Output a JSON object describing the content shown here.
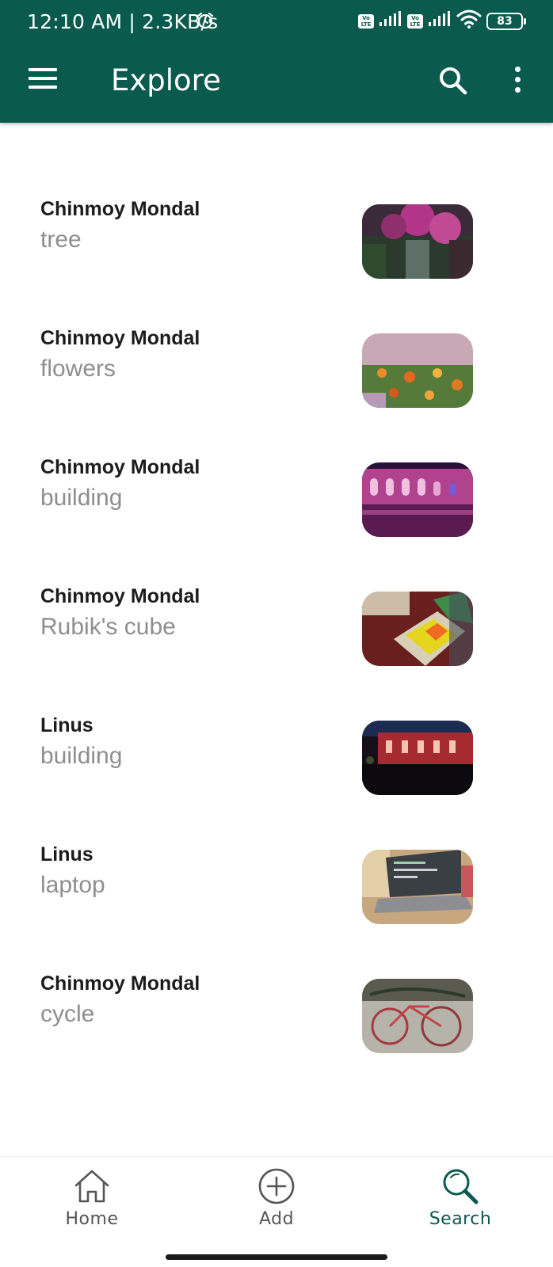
{
  "status_bar": {
    "time": "12:10 AM | 2.3KB/s",
    "battery": "83",
    "volte_label": "Vo LTE"
  },
  "app_bar": {
    "title": "Explore",
    "icons": [
      "menu-icon",
      "search-icon",
      "more-vert-icon"
    ]
  },
  "items": [
    {
      "author": "Chinmoy Mondal",
      "title": "tree"
    },
    {
      "author": "Chinmoy Mondal",
      "title": "flowers"
    },
    {
      "author": "Chinmoy Mondal",
      "title": "building"
    },
    {
      "author": "Chinmoy Mondal",
      "title": "Rubik's cube"
    },
    {
      "author": "Linus",
      "title": "building"
    },
    {
      "author": "Linus",
      "title": "laptop"
    },
    {
      "author": "Chinmoy Mondal",
      "title": "cycle"
    }
  ],
  "bottom_nav": {
    "items": [
      {
        "label": "Home",
        "icon": "home-icon",
        "active": false
      },
      {
        "label": "Add",
        "icon": "add-circle-icon",
        "active": false
      },
      {
        "label": "Search",
        "icon": "search-icon",
        "active": true
      }
    ]
  },
  "colors": {
    "app_bar": "#0b5a4e",
    "nav_active": "#0b5a4e",
    "nav_inactive": "#555555",
    "author_text": "#1c1c1c",
    "title_text": "#8e8e8e"
  }
}
